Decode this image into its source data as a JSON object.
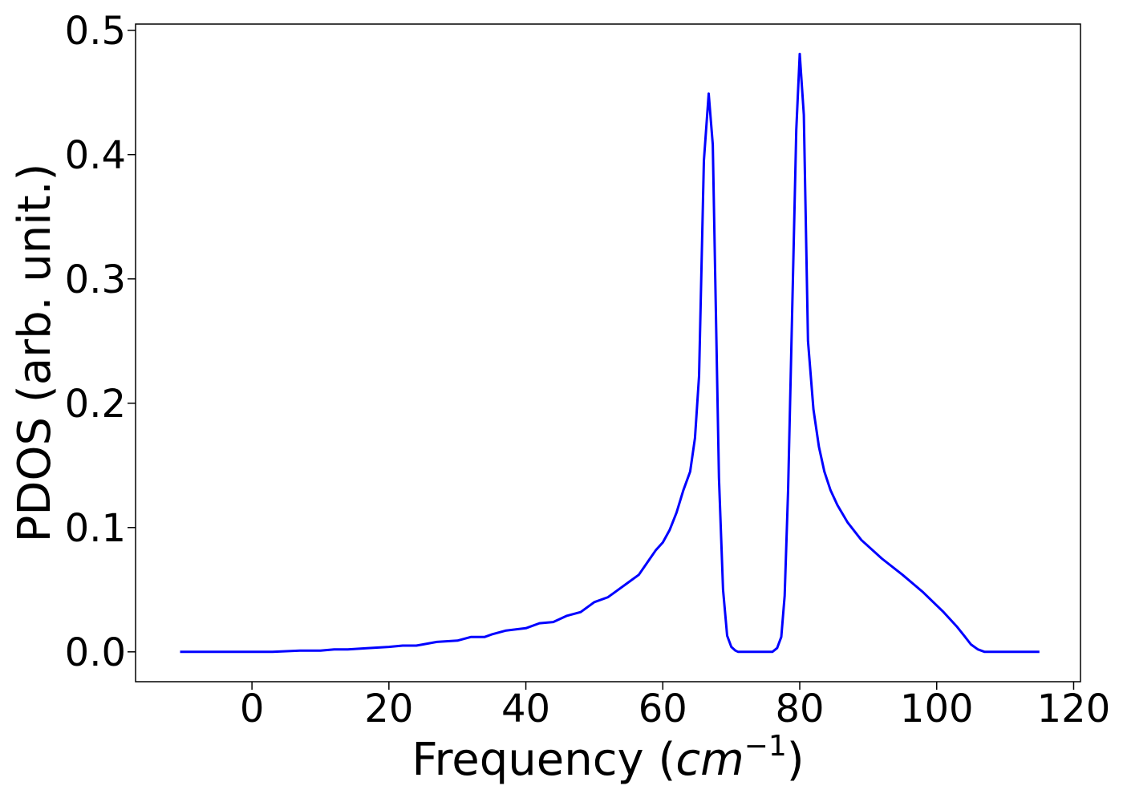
{
  "chart_data": {
    "type": "line",
    "title": "",
    "xlabel": "Frequency",
    "xlabel_unit_base": "cm",
    "xlabel_unit_exp": "−1",
    "ylabel": "PDOS (arb. unit.)",
    "xlim": [
      -17,
      121
    ],
    "ylim": [
      -0.024,
      0.505
    ],
    "xticks": [
      0,
      20,
      40,
      60,
      80,
      100,
      120
    ],
    "xtick_labels": [
      "0",
      "20",
      "40",
      "60",
      "80",
      "100",
      "120"
    ],
    "yticks": [
      0.0,
      0.1,
      0.2,
      0.3,
      0.4,
      0.5
    ],
    "ytick_labels": [
      "0.0",
      "0.1",
      "0.2",
      "0.3",
      "0.4",
      "0.5"
    ],
    "grid": false,
    "legend": "none",
    "series": [
      {
        "color": "#0000ff",
        "x": [
          -10.5,
          0,
          3,
          7,
          10,
          12,
          14,
          17,
          20,
          22,
          24,
          25,
          27,
          30,
          32,
          34,
          35,
          37,
          40,
          42,
          44,
          46,
          48,
          50,
          52,
          53,
          55,
          56.5,
          58,
          59,
          60,
          61,
          62,
          63,
          64,
          64.7,
          65.3,
          66,
          66.7,
          67.3,
          68.2,
          68.8,
          69.4,
          70,
          70.6,
          71,
          71.5,
          72,
          76,
          76.7,
          77.3,
          77.8,
          78.3,
          79,
          79.5,
          80,
          80.6,
          81.2,
          82,
          82.8,
          83.6,
          84.5,
          85.5,
          87,
          89,
          92,
          95,
          98,
          101,
          103,
          104,
          105,
          106,
          107,
          110,
          115
        ],
        "y": [
          0.0,
          0.0,
          0.0,
          0.001,
          0.001,
          0.002,
          0.002,
          0.003,
          0.004,
          0.005,
          0.005,
          0.006,
          0.008,
          0.009,
          0.012,
          0.012,
          0.014,
          0.017,
          0.019,
          0.023,
          0.024,
          0.029,
          0.032,
          0.04,
          0.044,
          0.048,
          0.056,
          0.062,
          0.074,
          0.082,
          0.088,
          0.098,
          0.112,
          0.13,
          0.145,
          0.172,
          0.222,
          0.395,
          0.449,
          0.408,
          0.14,
          0.05,
          0.013,
          0.004,
          0.001,
          0.0,
          0.0,
          0.0,
          0.0,
          0.003,
          0.012,
          0.045,
          0.13,
          0.3,
          0.42,
          0.481,
          0.432,
          0.25,
          0.195,
          0.165,
          0.145,
          0.13,
          0.118,
          0.104,
          0.09,
          0.075,
          0.062,
          0.048,
          0.032,
          0.02,
          0.013,
          0.006,
          0.002,
          0.0,
          0.0,
          0.0
        ]
      }
    ]
  }
}
